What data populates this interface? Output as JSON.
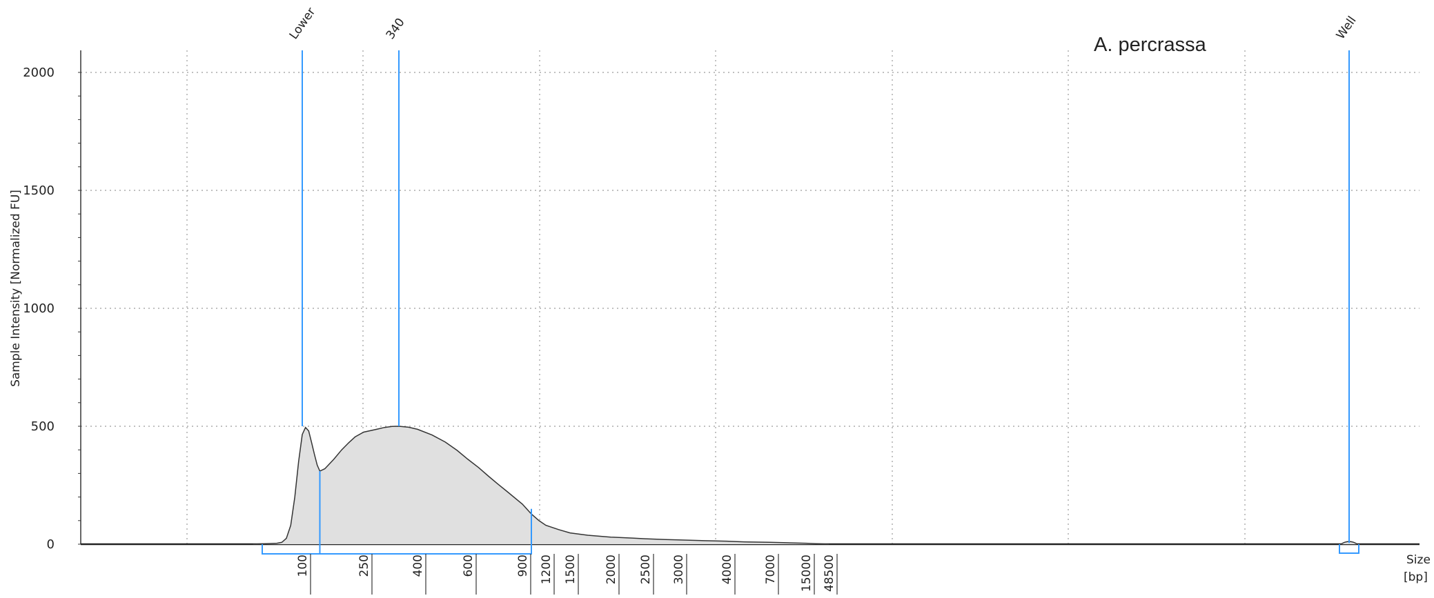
{
  "chart_data": {
    "type": "area",
    "title": "",
    "sample_name": "A. percrassa",
    "ylabel": "Sample Intensity [Normalized FU]",
    "xlabel": [
      "Size",
      "[bp]"
    ],
    "ylim": [
      0,
      2000
    ],
    "y_ticks": [
      "0",
      "500",
      "1000",
      "1500",
      "2000"
    ],
    "x_tick_labels": [
      "100",
      "250",
      "400",
      "600",
      "900",
      "1200",
      "1500",
      "2000",
      "2500",
      "3000",
      "4000",
      "7000",
      "15000",
      "48500"
    ],
    "grid": "dotted",
    "markers": [
      {
        "label": "Lower",
        "size_bp": 100,
        "intensity": 500
      },
      {
        "label": "340",
        "size_bp": 340,
        "intensity": 500
      },
      {
        "label": "Well",
        "size_bp": null,
        "intensity": 5
      }
    ],
    "region": {
      "from_bp": 100,
      "to_bp": 1000
    },
    "series": [
      {
        "x_bp": [
          50,
          60,
          70,
          75,
          80,
          85,
          90,
          95,
          100,
          105,
          110,
          115,
          120,
          125,
          130,
          140,
          160,
          180,
          200,
          220,
          250,
          280,
          300,
          320,
          340,
          370,
          400,
          450,
          500,
          550,
          600,
          650,
          700,
          750,
          800,
          900,
          1000,
          1100,
          1200,
          1350,
          1500,
          1700,
          2000,
          2300,
          2500,
          2800,
          3000,
          3500,
          4000,
          5000,
          7000,
          10000,
          15000,
          25000,
          48500
        ],
        "intensity": [
          0,
          2,
          4,
          8,
          25,
          80,
          200,
          350,
          465,
          495,
          480,
          430,
          380,
          335,
          310,
          320,
          360,
          400,
          430,
          455,
          475,
          487,
          495,
          499,
          500,
          496,
          487,
          463,
          433,
          398,
          360,
          325,
          288,
          255,
          225,
          170,
          128,
          100,
          80,
          62,
          48,
          38,
          30,
          26,
          23,
          20,
          18,
          15,
          13,
          10,
          8,
          6,
          4,
          2,
          0
        ]
      }
    ]
  }
}
